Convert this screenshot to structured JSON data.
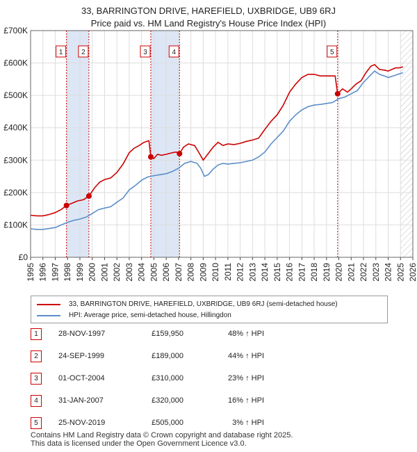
{
  "title_line1": "33, BARRINGTON DRIVE, HAREFIELD, UXBRIDGE, UB9 6RJ",
  "title_line2": "Price paid vs. HM Land Registry's House Price Index (HPI)",
  "colors": {
    "property": "#cc0000",
    "hpi": "#5b8ec9",
    "shade": "#dde6f5",
    "grid": "#dddddd",
    "future_hatch": "#bbbbbb"
  },
  "chart_data": {
    "type": "line",
    "xlim": [
      1995,
      2026
    ],
    "ylim": [
      0,
      700000
    ],
    "y_ticks": [
      {
        "value": 0,
        "label": "£0"
      },
      {
        "value": 100000,
        "label": "£100K"
      },
      {
        "value": 200000,
        "label": "£200K"
      },
      {
        "value": 300000,
        "label": "£300K"
      },
      {
        "value": 400000,
        "label": "£400K"
      },
      {
        "value": 500000,
        "label": "£500K"
      },
      {
        "value": 600000,
        "label": "£600K"
      },
      {
        "value": 700000,
        "label": "£700K"
      }
    ],
    "x_ticks": [
      "1995",
      "1996",
      "1997",
      "1998",
      "1999",
      "2000",
      "2001",
      "2002",
      "2003",
      "2004",
      "2005",
      "2006",
      "2007",
      "2008",
      "2009",
      "2010",
      "2011",
      "2012",
      "2013",
      "2014",
      "2015",
      "2016",
      "2017",
      "2018",
      "2019",
      "2020",
      "2021",
      "2022",
      "2023",
      "2024",
      "2025",
      "2026"
    ],
    "hatch_from": 2025.0,
    "shaded_spans": [
      [
        1997.91,
        1999.73
      ],
      [
        2004.75,
        2007.08
      ]
    ],
    "series": [
      {
        "name": "33, BARRINGTON DRIVE, HAREFIELD, UXBRIDGE, UB9 6RJ (semi-detached house)",
        "points": [
          [
            1995.0,
            130000
          ],
          [
            1995.5,
            128000
          ],
          [
            1996.0,
            128000
          ],
          [
            1996.5,
            132000
          ],
          [
            1997.0,
            138000
          ],
          [
            1997.5,
            148000
          ],
          [
            1997.91,
            159950
          ],
          [
            1998.3,
            166000
          ],
          [
            1998.8,
            174000
          ],
          [
            1999.3,
            178000
          ],
          [
            1999.73,
            189000
          ],
          [
            2000.2,
            215000
          ],
          [
            2000.6,
            232000
          ],
          [
            2001.0,
            240000
          ],
          [
            2001.5,
            245000
          ],
          [
            2002.0,
            262000
          ],
          [
            2002.5,
            288000
          ],
          [
            2003.0,
            323000
          ],
          [
            2003.4,
            337000
          ],
          [
            2003.8,
            345000
          ],
          [
            2004.2,
            355000
          ],
          [
            2004.6,
            360000
          ],
          [
            2004.75,
            310000
          ],
          [
            2005.0,
            305000
          ],
          [
            2005.3,
            318000
          ],
          [
            2005.6,
            315000
          ],
          [
            2006.0,
            318000
          ],
          [
            2006.4,
            322000
          ],
          [
            2006.8,
            325000
          ],
          [
            2007.08,
            320000
          ],
          [
            2007.4,
            340000
          ],
          [
            2007.8,
            350000
          ],
          [
            2008.3,
            345000
          ],
          [
            2008.7,
            320000
          ],
          [
            2009.0,
            300000
          ],
          [
            2009.4,
            320000
          ],
          [
            2009.8,
            340000
          ],
          [
            2010.2,
            355000
          ],
          [
            2010.6,
            345000
          ],
          [
            2011.0,
            350000
          ],
          [
            2011.5,
            348000
          ],
          [
            2012.0,
            352000
          ],
          [
            2012.5,
            358000
          ],
          [
            2013.0,
            362000
          ],
          [
            2013.5,
            368000
          ],
          [
            2014.0,
            395000
          ],
          [
            2014.5,
            420000
          ],
          [
            2015.0,
            440000
          ],
          [
            2015.5,
            470000
          ],
          [
            2016.0,
            510000
          ],
          [
            2016.5,
            535000
          ],
          [
            2017.0,
            555000
          ],
          [
            2017.5,
            565000
          ],
          [
            2018.0,
            565000
          ],
          [
            2018.5,
            560000
          ],
          [
            2019.0,
            560000
          ],
          [
            2019.7,
            560000
          ],
          [
            2019.9,
            505000
          ],
          [
            2020.3,
            520000
          ],
          [
            2020.7,
            510000
          ],
          [
            2021.0,
            520000
          ],
          [
            2021.4,
            535000
          ],
          [
            2021.8,
            545000
          ],
          [
            2022.2,
            570000
          ],
          [
            2022.6,
            590000
          ],
          [
            2022.9,
            595000
          ],
          [
            2023.3,
            580000
          ],
          [
            2023.7,
            578000
          ],
          [
            2024.0,
            575000
          ],
          [
            2024.3,
            580000
          ],
          [
            2024.6,
            585000
          ],
          [
            2024.9,
            585000
          ],
          [
            2025.2,
            588000
          ]
        ]
      },
      {
        "name": "HPI: Average price, semi-detached house, Hillingdon",
        "points": [
          [
            1995.0,
            88000
          ],
          [
            1995.5,
            86000
          ],
          [
            1996.0,
            86000
          ],
          [
            1996.5,
            89000
          ],
          [
            1997.0,
            92000
          ],
          [
            1997.5,
            100000
          ],
          [
            1998.0,
            108000
          ],
          [
            1998.5,
            114000
          ],
          [
            1999.0,
            118000
          ],
          [
            1999.5,
            124000
          ],
          [
            2000.0,
            135000
          ],
          [
            2000.5,
            147000
          ],
          [
            2001.0,
            152000
          ],
          [
            2001.5,
            156000
          ],
          [
            2002.0,
            170000
          ],
          [
            2002.5,
            183000
          ],
          [
            2003.0,
            208000
          ],
          [
            2003.5,
            222000
          ],
          [
            2004.0,
            238000
          ],
          [
            2004.5,
            248000
          ],
          [
            2005.0,
            252000
          ],
          [
            2005.5,
            255000
          ],
          [
            2006.0,
            258000
          ],
          [
            2006.5,
            265000
          ],
          [
            2007.0,
            275000
          ],
          [
            2007.5,
            290000
          ],
          [
            2008.0,
            296000
          ],
          [
            2008.5,
            290000
          ],
          [
            2008.8,
            275000
          ],
          [
            2009.1,
            250000
          ],
          [
            2009.4,
            255000
          ],
          [
            2009.8,
            272000
          ],
          [
            2010.2,
            285000
          ],
          [
            2010.6,
            290000
          ],
          [
            2011.0,
            288000
          ],
          [
            2011.5,
            290000
          ],
          [
            2012.0,
            292000
          ],
          [
            2012.5,
            296000
          ],
          [
            2013.0,
            300000
          ],
          [
            2013.5,
            310000
          ],
          [
            2014.0,
            325000
          ],
          [
            2014.5,
            350000
          ],
          [
            2015.0,
            370000
          ],
          [
            2015.5,
            390000
          ],
          [
            2016.0,
            420000
          ],
          [
            2016.5,
            440000
          ],
          [
            2017.0,
            455000
          ],
          [
            2017.5,
            465000
          ],
          [
            2018.0,
            470000
          ],
          [
            2018.5,
            472000
          ],
          [
            2019.0,
            475000
          ],
          [
            2019.5,
            478000
          ],
          [
            2020.0,
            490000
          ],
          [
            2020.5,
            495000
          ],
          [
            2021.0,
            505000
          ],
          [
            2021.5,
            515000
          ],
          [
            2022.0,
            540000
          ],
          [
            2022.5,
            560000
          ],
          [
            2022.9,
            575000
          ],
          [
            2023.3,
            565000
          ],
          [
            2023.7,
            560000
          ],
          [
            2024.0,
            555000
          ],
          [
            2024.4,
            560000
          ],
          [
            2024.8,
            565000
          ],
          [
            2025.2,
            570000
          ]
        ]
      }
    ],
    "sales": [
      {
        "num": "1",
        "x": 1997.91,
        "value": 159950
      },
      {
        "num": "2",
        "x": 1999.73,
        "value": 189000
      },
      {
        "num": "3",
        "x": 2004.75,
        "value": 310000
      },
      {
        "num": "4",
        "x": 2007.08,
        "value": 320000
      },
      {
        "num": "5",
        "x": 2019.9,
        "value": 505000
      }
    ]
  },
  "legend": {
    "property_label": "33, BARRINGTON DRIVE, HAREFIELD, UXBRIDGE, UB9 6RJ (semi-detached house)",
    "hpi_label": "HPI: Average price, semi-detached house, Hillingdon"
  },
  "sales_table": [
    {
      "num": "1",
      "date": "28-NOV-1997",
      "price": "£159,950",
      "hpi": "48% ↑ HPI"
    },
    {
      "num": "2",
      "date": "24-SEP-1999",
      "price": "£189,000",
      "hpi": "44% ↑ HPI"
    },
    {
      "num": "3",
      "date": "01-OCT-2004",
      "price": "£310,000",
      "hpi": "23% ↑ HPI"
    },
    {
      "num": "4",
      "date": "31-JAN-2007",
      "price": "£320,000",
      "hpi": "16% ↑ HPI"
    },
    {
      "num": "5",
      "date": "25-NOV-2019",
      "price": "£505,000",
      "hpi": "3% ↑ HPI"
    }
  ],
  "footer_line1": "Contains HM Land Registry data © Crown copyright and database right 2025.",
  "footer_line2": "This data is licensed under the Open Government Licence v3.0."
}
